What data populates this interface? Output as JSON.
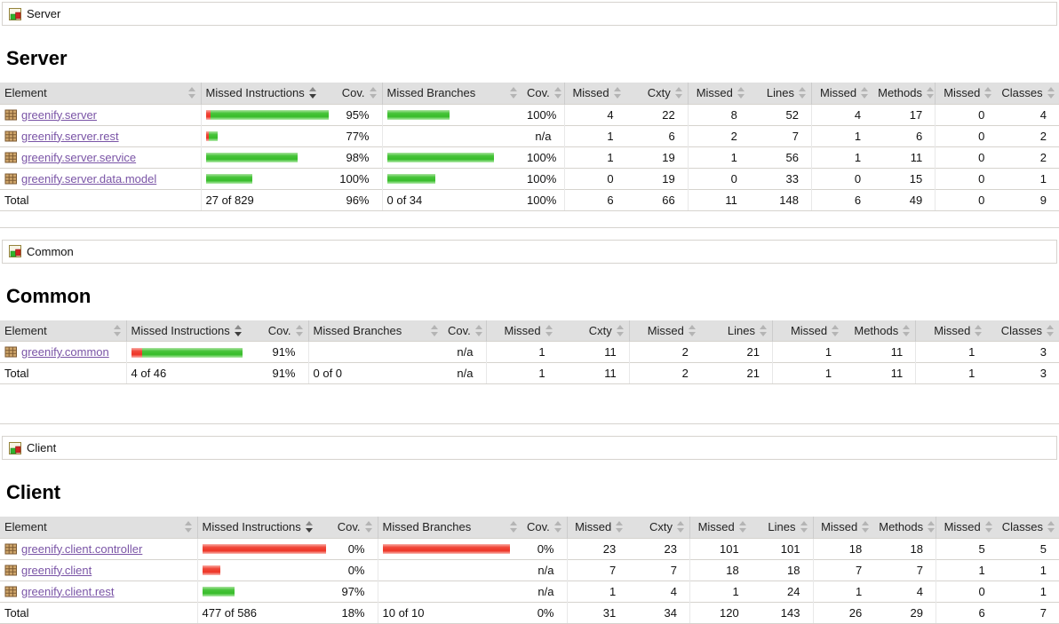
{
  "colors": {
    "header_bg": "#e0e0e0",
    "row_border": "#d6d3ce",
    "link": "#7a54a6",
    "bar_green": "#37bc2a",
    "bar_red": "#ee3425",
    "package_icon_fill": "#cfa66b",
    "package_icon_line": "#7d5a32"
  },
  "icons": {
    "breadcrumb_icon": "group-report-icon",
    "element_icon": "package-icon",
    "sort_icon": "sort-arrows-icon",
    "sorted_desc_icon": "sort-desc-icon"
  },
  "sort": {
    "column": "Missed Instructions",
    "order": "desc"
  },
  "columns": [
    {
      "label": "Element"
    },
    {
      "label": "Missed Instructions",
      "sorted": true
    },
    {
      "label": "Cov."
    },
    {
      "label": "Missed Branches"
    },
    {
      "label": "Cov."
    },
    {
      "label": "Missed"
    },
    {
      "label": "Cxty"
    },
    {
      "label": "Missed"
    },
    {
      "label": "Lines"
    },
    {
      "label": "Missed"
    },
    {
      "label": "Methods"
    },
    {
      "label": "Missed"
    },
    {
      "label": "Classes"
    }
  ],
  "sections": [
    {
      "breadcrumb": "Server",
      "heading": "Server",
      "rows": [
        {
          "element": "greenify.server",
          "instr_bar": [
            6,
            134
          ],
          "instr_cov": "95%",
          "branch_bar": [
            0,
            70
          ],
          "branch_cov": "100%",
          "counters": [
            "4",
            "22",
            "8",
            "52",
            "4",
            "17",
            "0",
            "4"
          ]
        },
        {
          "element": "greenify.server.rest",
          "instr_bar": [
            3,
            10
          ],
          "instr_cov": "77%",
          "branch_bar": [
            0,
            0
          ],
          "branch_cov": "n/a",
          "counters": [
            "1",
            "6",
            "2",
            "7",
            "1",
            "6",
            "0",
            "2"
          ]
        },
        {
          "element": "greenify.server.service",
          "instr_bar": [
            0,
            103
          ],
          "instr_cov": "98%",
          "branch_bar": [
            0,
            120
          ],
          "branch_cov": "100%",
          "counters": [
            "1",
            "19",
            "1",
            "56",
            "1",
            "11",
            "0",
            "2"
          ]
        },
        {
          "element": "greenify.server.data.model",
          "instr_bar": [
            0,
            52
          ],
          "instr_cov": "100%",
          "branch_bar": [
            0,
            54
          ],
          "branch_cov": "100%",
          "counters": [
            "0",
            "19",
            "0",
            "33",
            "0",
            "15",
            "0",
            "1"
          ]
        }
      ],
      "total": {
        "label": "Total",
        "instr": "27 of 829",
        "instr_cov": "96%",
        "branch": "0 of 34",
        "branch_cov": "100%",
        "counters": [
          "6",
          "66",
          "11",
          "148",
          "6",
          "49",
          "0",
          "9"
        ]
      }
    },
    {
      "breadcrumb": "Common",
      "heading": "Common",
      "rows": [
        {
          "element": "greenify.common",
          "instr_bar": [
            12,
            113
          ],
          "instr_cov": "91%",
          "branch_bar": [
            0,
            0
          ],
          "branch_cov": "n/a",
          "counters": [
            "1",
            "11",
            "2",
            "21",
            "1",
            "11",
            "1",
            "3"
          ]
        }
      ],
      "total": {
        "label": "Total",
        "instr": "4 of 46",
        "instr_cov": "91%",
        "branch": "0 of 0",
        "branch_cov": "n/a",
        "counters": [
          "1",
          "11",
          "2",
          "21",
          "1",
          "11",
          "1",
          "3"
        ]
      }
    },
    {
      "breadcrumb": "Client",
      "heading": "Client",
      "rows": [
        {
          "element": "greenify.client.controller",
          "instr_bar": [
            143,
            0
          ],
          "instr_cov": "0%",
          "branch_bar": [
            143,
            0
          ],
          "branch_cov": "0%",
          "counters": [
            "23",
            "23",
            "101",
            "101",
            "18",
            "18",
            "5",
            "5"
          ]
        },
        {
          "element": "greenify.client",
          "instr_bar": [
            20,
            0
          ],
          "instr_cov": "0%",
          "branch_bar": [
            0,
            0
          ],
          "branch_cov": "n/a",
          "counters": [
            "7",
            "7",
            "18",
            "18",
            "7",
            "7",
            "1",
            "1"
          ]
        },
        {
          "element": "greenify.client.rest",
          "instr_bar": [
            0,
            36
          ],
          "instr_cov": "97%",
          "branch_bar": [
            0,
            0
          ],
          "branch_cov": "n/a",
          "counters": [
            "1",
            "4",
            "1",
            "24",
            "1",
            "4",
            "0",
            "1"
          ]
        }
      ],
      "total": {
        "label": "Total",
        "instr": "477 of 586",
        "instr_cov": "18%",
        "branch": "10 of 10",
        "branch_cov": "0%",
        "counters": [
          "31",
          "34",
          "120",
          "143",
          "26",
          "29",
          "6",
          "7"
        ]
      }
    }
  ]
}
